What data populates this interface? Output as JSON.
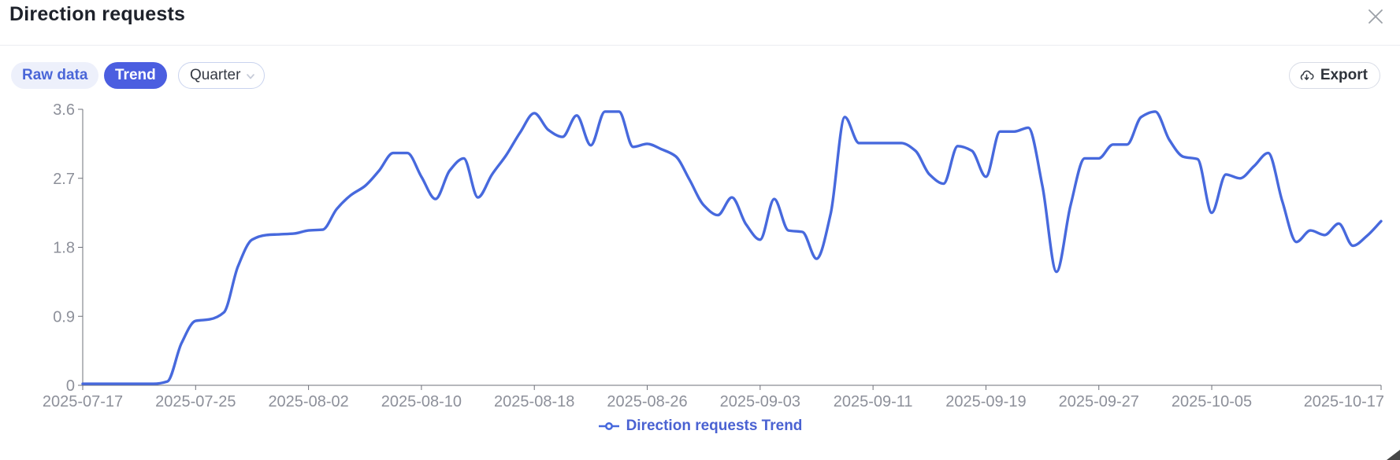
{
  "header": {
    "title": "Direction requests",
    "close_icon": "x-close"
  },
  "toolbar": {
    "raw_data_label": "Raw data",
    "trend_label": "Trend",
    "interval_select": {
      "value": "Quarter",
      "icon": "chevron-down-icon"
    },
    "export_label": "Export",
    "export_icon": "cloud-download-icon"
  },
  "legend": {
    "label": "Direction requests Trend",
    "marker": "line-with-ring"
  },
  "colors": {
    "line": "#4769dd",
    "trend_button_bg": "#4b5ee0",
    "toggle_bg": "#edf0fb",
    "toggle_text": "#4a66d8",
    "legend_text": "#4a62d2",
    "axis": "#6E7079",
    "tick_label": "#8d909a",
    "title_text": "#1e222b",
    "close_icon": "#9ba0a7"
  },
  "chart_data": {
    "type": "line",
    "title": "Direction requests",
    "series": [
      {
        "name": "Direction requests Trend"
      }
    ],
    "smooth": true,
    "grid": false,
    "legend_position": "bottom",
    "start_date": "2025-07-17",
    "end_date": "2025-10-17",
    "x_days_total": 92,
    "ylim": [
      0,
      3.6
    ],
    "y_tick_labels": [
      "0",
      "0.9",
      "1.8",
      "2.7",
      "3.6"
    ],
    "y_tick_values": [
      0,
      0.9,
      1.8,
      2.7,
      3.6
    ],
    "x_tick_days": [
      0,
      8,
      16,
      24,
      32,
      40,
      48,
      56,
      64,
      72,
      80,
      92
    ],
    "x_tick_labels": [
      "2025-07-17",
      "2025-07-25",
      "2025-08-02",
      "2025-08-10",
      "2025-08-18",
      "2025-08-26",
      "2025-09-03",
      "2025-09-11",
      "2025-09-19",
      "2025-09-27",
      "2025-10-05",
      "2025-10-17"
    ],
    "values_daily": [
      0.02,
      0.02,
      0.02,
      0.02,
      0.02,
      0.02,
      0.05,
      0.55,
      0.84,
      0.86,
      0.95,
      1.55,
      1.9,
      1.96,
      1.97,
      1.98,
      2.02,
      2.03,
      2.3,
      2.48,
      2.6,
      2.8,
      3.03,
      3.03,
      2.72,
      2.43,
      2.8,
      2.96,
      2.45,
      2.75,
      3.0,
      3.3,
      3.55,
      3.33,
      3.24,
      3.52,
      3.13,
      3.57,
      3.57,
      3.11,
      3.15,
      3.08,
      2.99,
      2.68,
      2.35,
      2.22,
      2.45,
      2.1,
      1.9,
      2.43,
      2.02,
      2.0,
      1.65,
      2.24,
      3.5,
      3.16,
      3.16,
      3.16,
      3.16,
      3.06,
      2.75,
      2.63,
      3.12,
      3.06,
      2.72,
      3.31,
      3.31,
      3.36,
      2.6,
      1.48,
      2.35,
      2.96,
      2.96,
      3.14,
      3.14,
      3.5,
      3.57,
      3.2,
      2.98,
      2.95,
      2.25,
      2.75,
      2.7,
      2.86,
      3.03,
      2.4,
      1.87,
      2.02,
      1.96,
      2.11,
      1.82,
      1.95,
      2.14
    ]
  }
}
